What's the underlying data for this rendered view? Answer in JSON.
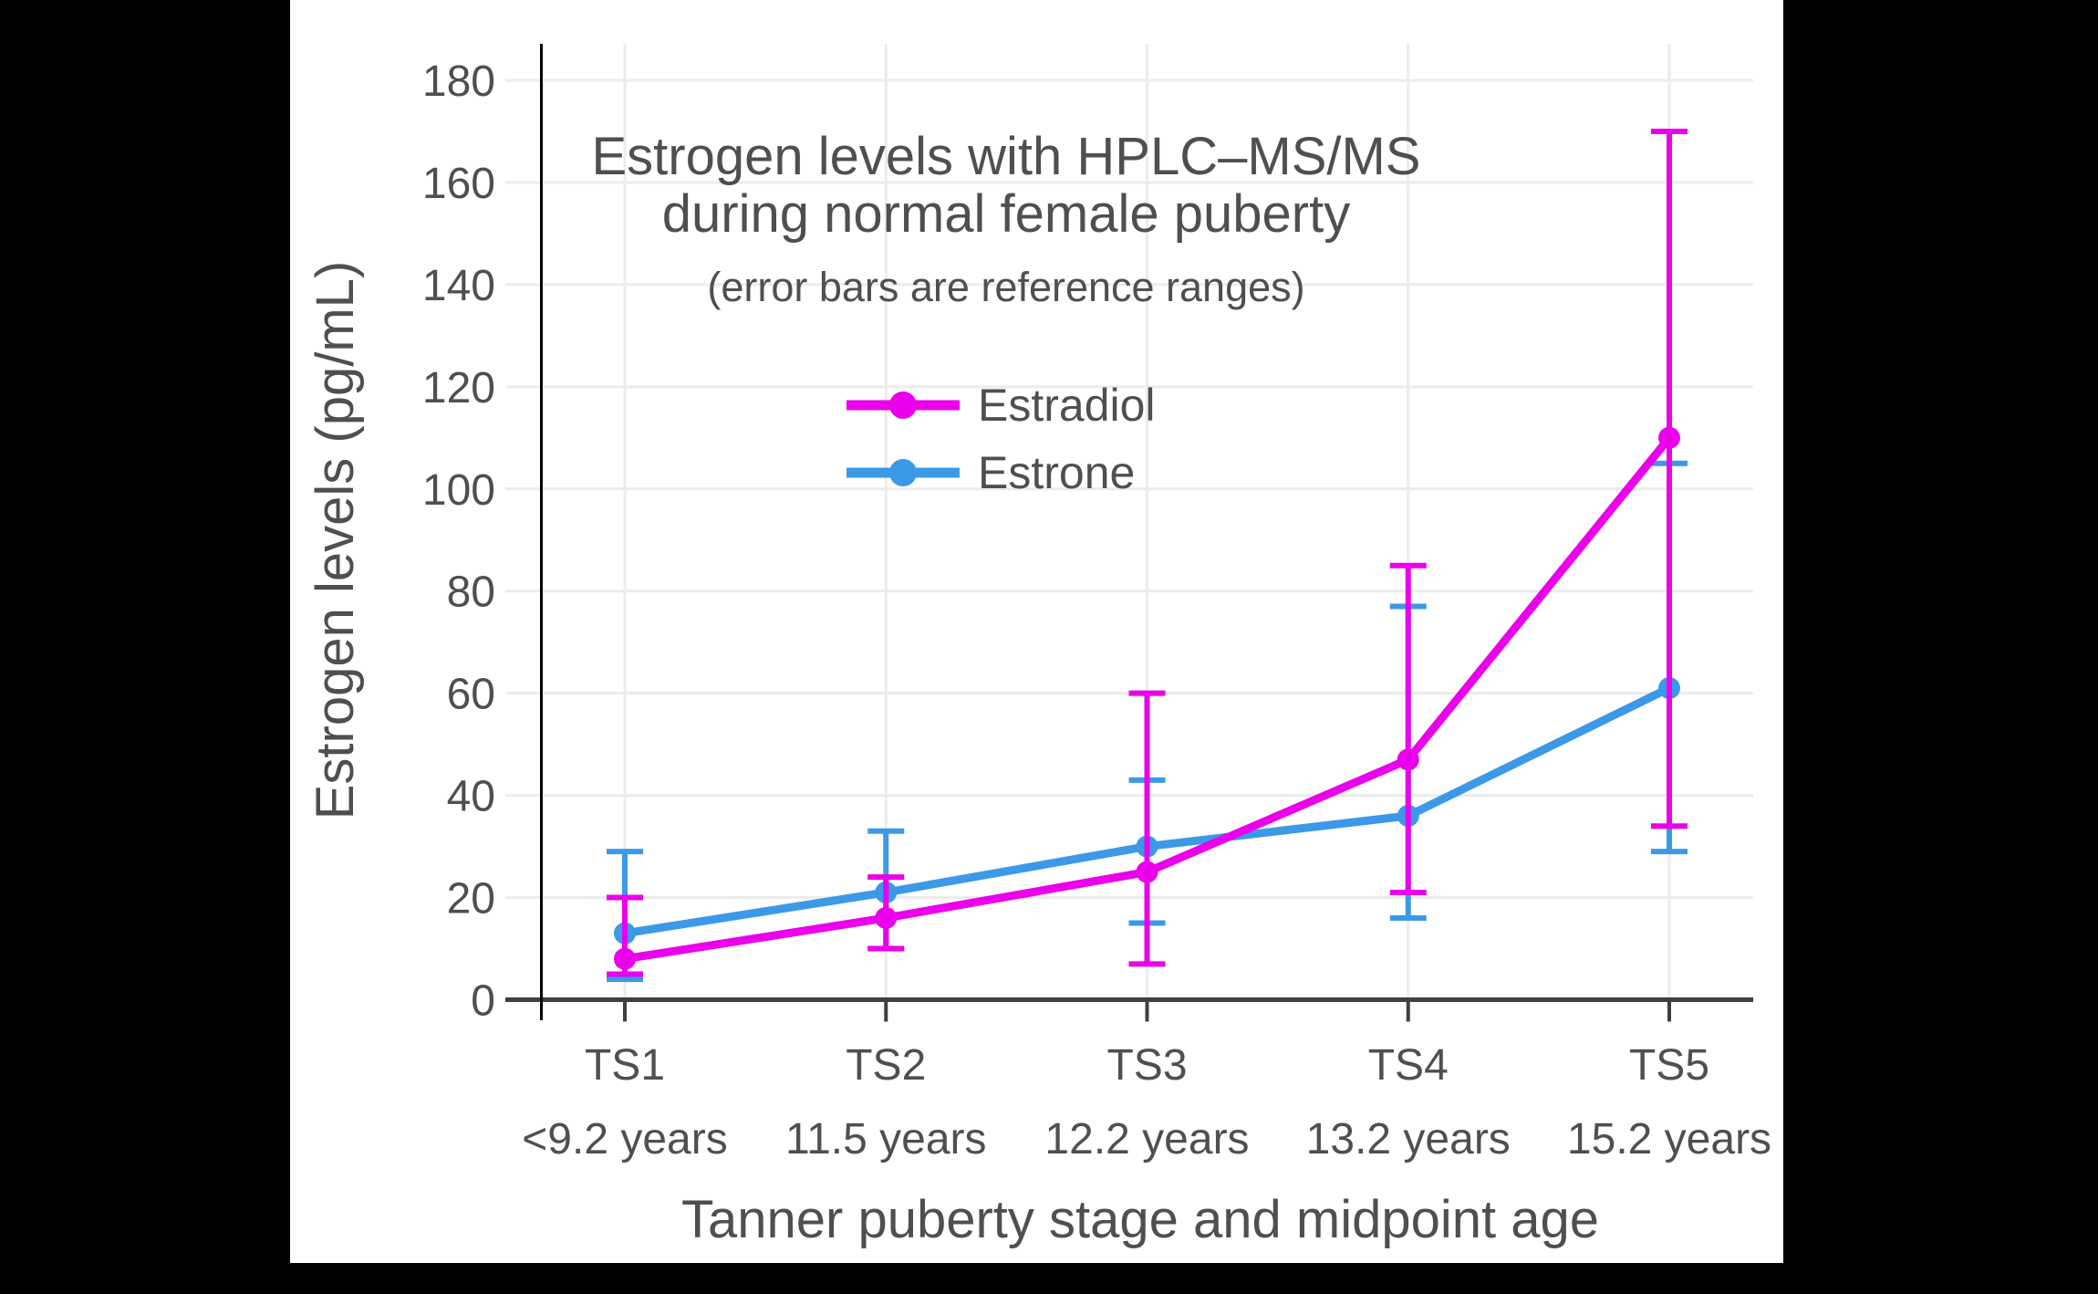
{
  "figure": {
    "title_line1": "Estrogen levels with HPLC–MS/MS",
    "title_line2": "during normal female puberty",
    "subtitle": "(error bars are reference ranges)",
    "ylabel": "Estrogen levels (pg/mL)",
    "xlabel": "Tanner puberty stage and midpoint age"
  },
  "colors": {
    "background": "#000000",
    "panel": "#ffffff",
    "grid": "#ececec",
    "axis_line": "#3f3f3f",
    "spine": "#000000",
    "text": "#4f4f4f",
    "estradiol": "#ea00ea",
    "estrone": "#3b99e7"
  },
  "chart_data": {
    "type": "line",
    "title": "Estrogen levels with HPLC–MS/MS during normal female puberty",
    "subtitle": "(error bars are reference ranges)",
    "xlabel": "Tanner puberty stage and midpoint age",
    "ylabel": "Estrogen levels (pg/mL)",
    "ylim": [
      0,
      180
    ],
    "ytick_step": 20,
    "grid": true,
    "legend_position": "upper-center-inside",
    "error_bars": "reference ranges",
    "categories": [
      "TS1",
      "TS2",
      "TS3",
      "TS4",
      "TS5"
    ],
    "category_sublabels": [
      "<9.2 years",
      "11.5 years",
      "12.2 years",
      "13.2 years",
      "15.2 years"
    ],
    "series": [
      {
        "name": "Estradiol",
        "color": "#ea00ea",
        "values": [
          8,
          16,
          25,
          47,
          110
        ],
        "error_low": [
          5,
          10,
          7,
          21,
          34
        ],
        "error_high": [
          20,
          24,
          60,
          85,
          170
        ]
      },
      {
        "name": "Estrone",
        "color": "#3b99e7",
        "values": [
          13,
          21,
          30,
          36,
          61
        ],
        "error_low": [
          4,
          10,
          15,
          16,
          29
        ],
        "error_high": [
          29,
          33,
          43,
          77,
          105
        ]
      }
    ]
  }
}
